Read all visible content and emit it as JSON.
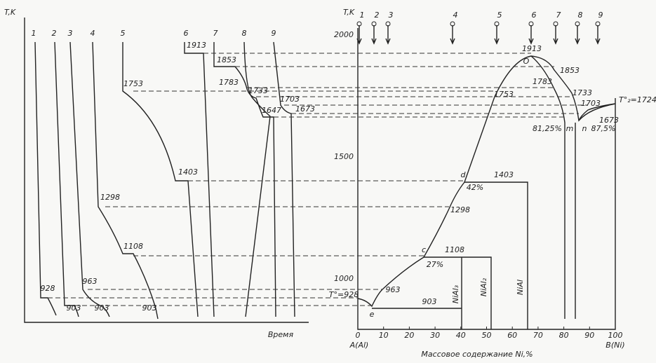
{
  "cooling_curves": {
    "axis_label": "T,K",
    "time_label": "Время",
    "curve_labels": [
      "1",
      "2",
      "3",
      "4",
      "5",
      "6",
      "7",
      "8",
      "9"
    ],
    "temperature_labels": [
      "928",
      "903",
      "963",
      "903",
      "1753",
      "1403",
      "1298",
      "1108",
      "903",
      "1913",
      "1853",
      "1783",
      "1733",
      "1703",
      "1647",
      "1673"
    ]
  },
  "phase_diagram": {
    "axis_label": "T,K",
    "y_ticks": [
      "1000",
      "1500",
      "2000"
    ],
    "x_ticks": [
      "0",
      "10",
      "20",
      "30",
      "40",
      "50",
      "60",
      "70",
      "80",
      "90",
      "100"
    ],
    "left_component": "A(Al)",
    "right_component": "B(Ni)",
    "x_title": "Массовое содержание Ni,%",
    "alloy_labels": [
      "1",
      "2",
      "3",
      "4",
      "5",
      "6",
      "7",
      "8",
      "9"
    ],
    "point_labels": [
      "1913",
      "O",
      "1853",
      "1783",
      "1753",
      "1733",
      "1703",
      "T°₂=1724",
      "81,25%",
      "m",
      "n",
      "87,5%",
      "1673",
      "d",
      "1403",
      "42%",
      "1298",
      "c",
      "1108",
      "27%",
      "963",
      "T°=928",
      "e",
      "903"
    ],
    "phases": [
      "NiAl₃",
      "NiAl₂",
      "NiAl"
    ]
  }
}
